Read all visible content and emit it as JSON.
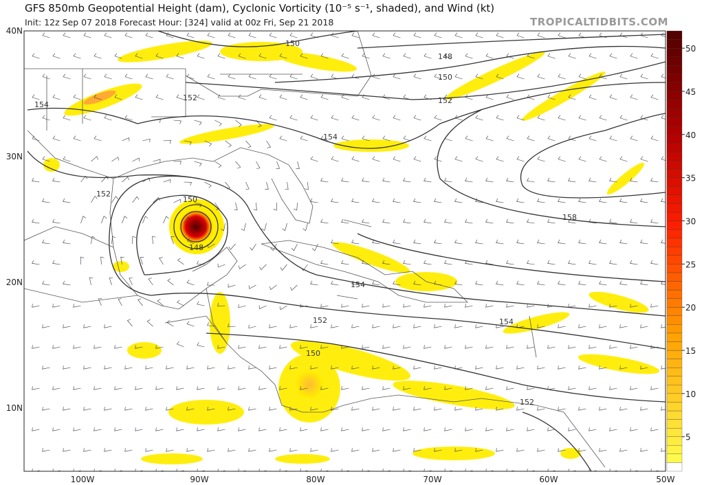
{
  "header": {
    "title": "GFS 850mb Geopotential Height (dam), Cyclonic Vorticity (10⁻⁵ s⁻¹, shaded), and Wind (kt)",
    "subtitle": "Init: 12z Sep 07 2018   Forecast Hour: [324]   valid at 00z Fri, Sep 21 2018",
    "brand": "TROPICALTIDBITS.COM"
  },
  "map": {
    "lon_range": [
      -105,
      -50
    ],
    "lat_range": [
      5,
      40
    ],
    "lat_labels": [
      "40N",
      "30N",
      "20N",
      "10N"
    ],
    "lon_labels": [
      "100W",
      "90W",
      "80W",
      "70W",
      "60W",
      "50W"
    ],
    "contour_labels": [
      "150",
      "148",
      "150",
      "152",
      "154",
      "152",
      "154",
      "152",
      "150",
      "148",
      "152",
      "154",
      "158",
      "154",
      "152",
      "150",
      "152"
    ]
  },
  "colorbar": {
    "min": 1,
    "max": 52,
    "ticks": [
      "50",
      "45",
      "40",
      "35",
      "30",
      "25",
      "20",
      "15",
      "10",
      "5"
    ],
    "colors": {
      "low": "#ffff33",
      "mid": "#ff8c00",
      "high": "#ff1a00",
      "top": "#4d0000"
    }
  }
}
